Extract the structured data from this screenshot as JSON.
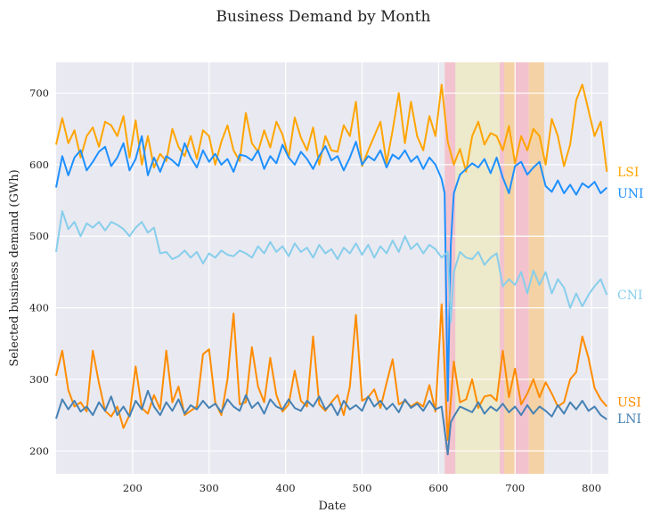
{
  "chart_data": {
    "type": "line",
    "title": "Business Demand by Month",
    "xlabel": "Date",
    "ylabel": "Selected business demand (GWh)",
    "xlim": [
      100,
      822
    ],
    "ylim": [
      168,
      743
    ],
    "xticks": [
      200,
      300,
      400,
      500,
      600,
      700,
      800
    ],
    "yticks": [
      200,
      300,
      400,
      500,
      600,
      700
    ],
    "grid": true,
    "background": "#e9e9f1",
    "bands": [
      {
        "start": 608,
        "end": 622,
        "color": "#f4b6c2"
      },
      {
        "start": 622,
        "end": 680,
        "color": "#eee8bd"
      },
      {
        "start": 680,
        "end": 686,
        "color": "#f4b6c2"
      },
      {
        "start": 686,
        "end": 700,
        "color": "#f7c98b"
      },
      {
        "start": 700,
        "end": 718,
        "color": "#f4b6c2"
      },
      {
        "start": 718,
        "end": 738,
        "color": "#f7c98b"
      }
    ],
    "series": [
      {
        "name": "LSI",
        "color": "#ffa500",
        "width": 2,
        "x": [
          100,
          108,
          116,
          124,
          132,
          140,
          148,
          156,
          164,
          172,
          180,
          188,
          196,
          204,
          212,
          220,
          228,
          236,
          244,
          252,
          260,
          268,
          276,
          284,
          292,
          300,
          308,
          316,
          324,
          332,
          340,
          348,
          356,
          364,
          372,
          380,
          388,
          396,
          404,
          412,
          420,
          428,
          436,
          444,
          452,
          460,
          468,
          476,
          484,
          492,
          500,
          508,
          516,
          524,
          532,
          540,
          548,
          556,
          564,
          572,
          580,
          588,
          596,
          604,
          612,
          620,
          628,
          636,
          644,
          652,
          660,
          668,
          676,
          684,
          692,
          700,
          708,
          716,
          724,
          732,
          740,
          748,
          756,
          764,
          772,
          780,
          788,
          796,
          804,
          812,
          820
        ],
        "y": [
          628,
          665,
          630,
          648,
          610,
          640,
          652,
          625,
          660,
          655,
          640,
          668,
          610,
          662,
          600,
          640,
          596,
          615,
          605,
          650,
          625,
          612,
          640,
          608,
          648,
          640,
          600,
          632,
          655,
          620,
          605,
          672,
          630,
          618,
          648,
          624,
          660,
          642,
          610,
          666,
          638,
          620,
          652,
          600,
          640,
          620,
          618,
          655,
          640,
          688,
          598,
          620,
          640,
          660,
          602,
          648,
          700,
          630,
          688,
          640,
          620,
          668,
          640,
          712,
          632,
          600,
          622,
          590,
          640,
          660,
          628,
          644,
          640,
          620,
          654,
          602,
          640,
          620,
          650,
          640,
          600,
          664,
          640,
          598,
          628,
          690,
          712,
          676,
          640,
          660,
          590
        ]
      },
      {
        "name": "UNI",
        "color": "#1e90ff",
        "width": 2,
        "x": [
          100,
          108,
          116,
          124,
          132,
          140,
          148,
          156,
          164,
          172,
          180,
          188,
          196,
          204,
          212,
          220,
          228,
          236,
          244,
          252,
          260,
          268,
          276,
          284,
          292,
          300,
          308,
          316,
          324,
          332,
          340,
          348,
          356,
          364,
          372,
          380,
          388,
          396,
          404,
          412,
          420,
          428,
          436,
          444,
          452,
          460,
          468,
          476,
          484,
          492,
          500,
          508,
          516,
          524,
          532,
          540,
          548,
          556,
          564,
          572,
          580,
          588,
          596,
          604,
          608,
          612,
          616,
          620,
          628,
          636,
          644,
          652,
          660,
          668,
          676,
          684,
          692,
          700,
          708,
          716,
          724,
          732,
          740,
          748,
          756,
          764,
          772,
          780,
          788,
          796,
          804,
          812,
          820
        ],
        "y": [
          568,
          612,
          585,
          610,
          620,
          592,
          604,
          618,
          625,
          598,
          610,
          630,
          592,
          608,
          640,
          585,
          610,
          590,
          612,
          606,
          598,
          630,
          610,
          596,
          620,
          604,
          615,
          600,
          608,
          590,
          614,
          612,
          606,
          620,
          594,
          612,
          602,
          628,
          610,
          600,
          618,
          608,
          594,
          612,
          626,
          606,
          612,
          592,
          610,
          632,
          600,
          612,
          606,
          620,
          596,
          614,
          608,
          620,
          604,
          612,
          594,
          610,
          600,
          580,
          560,
          270,
          488,
          560,
          586,
          594,
          602,
          596,
          608,
          588,
          610,
          582,
          560,
          598,
          604,
          586,
          596,
          604,
          570,
          562,
          578,
          560,
          572,
          558,
          574,
          568,
          576,
          560,
          568
        ]
      },
      {
        "name": "CNI",
        "color": "#87ceeb",
        "width": 2,
        "x": [
          100,
          108,
          116,
          124,
          132,
          140,
          148,
          156,
          164,
          172,
          180,
          188,
          196,
          204,
          212,
          220,
          228,
          236,
          244,
          252,
          260,
          268,
          276,
          284,
          292,
          300,
          308,
          316,
          324,
          332,
          340,
          348,
          356,
          364,
          372,
          380,
          388,
          396,
          404,
          412,
          420,
          428,
          436,
          444,
          452,
          460,
          468,
          476,
          484,
          492,
          500,
          508,
          516,
          524,
          532,
          540,
          548,
          556,
          564,
          572,
          580,
          588,
          596,
          604,
          612,
          616,
          620,
          628,
          636,
          644,
          652,
          660,
          668,
          676,
          684,
          692,
          700,
          708,
          716,
          724,
          732,
          740,
          748,
          756,
          764,
          772,
          780,
          788,
          796,
          804,
          812,
          820
        ],
        "y": [
          478,
          535,
          510,
          520,
          500,
          518,
          512,
          520,
          508,
          520,
          516,
          510,
          500,
          512,
          520,
          505,
          512,
          476,
          478,
          468,
          472,
          480,
          470,
          478,
          462,
          476,
          470,
          480,
          474,
          472,
          480,
          476,
          470,
          486,
          476,
          492,
          478,
          486,
          472,
          490,
          478,
          484,
          470,
          488,
          476,
          482,
          468,
          484,
          476,
          490,
          474,
          488,
          470,
          486,
          476,
          494,
          478,
          500,
          482,
          490,
          476,
          488,
          482,
          470,
          478,
          380,
          450,
          478,
          470,
          468,
          478,
          460,
          470,
          476,
          430,
          440,
          432,
          450,
          420,
          452,
          432,
          450,
          420,
          440,
          428,
          400,
          420,
          402,
          418,
          430,
          440,
          418
        ]
      },
      {
        "name": "USI",
        "color": "#ff8c00",
        "width": 2,
        "x": [
          100,
          108,
          116,
          124,
          132,
          140,
          148,
          156,
          164,
          172,
          180,
          188,
          196,
          204,
          212,
          220,
          228,
          236,
          244,
          252,
          260,
          268,
          276,
          284,
          292,
          300,
          308,
          316,
          324,
          332,
          340,
          348,
          356,
          364,
          372,
          380,
          388,
          396,
          404,
          412,
          420,
          428,
          436,
          444,
          452,
          460,
          468,
          476,
          484,
          492,
          500,
          508,
          516,
          524,
          532,
          540,
          548,
          556,
          564,
          572,
          580,
          588,
          596,
          604,
          612,
          620,
          628,
          636,
          644,
          652,
          660,
          668,
          676,
          684,
          692,
          700,
          708,
          716,
          724,
          732,
          740,
          748,
          756,
          764,
          772,
          780,
          788,
          796,
          804,
          812,
          820
        ],
        "y": [
          305,
          340,
          285,
          262,
          268,
          255,
          340,
          295,
          256,
          248,
          262,
          232,
          250,
          318,
          260,
          252,
          278,
          258,
          340,
          268,
          290,
          250,
          256,
          262,
          335,
          342,
          268,
          250,
          300,
          392,
          265,
          268,
          345,
          290,
          268,
          330,
          278,
          255,
          265,
          312,
          270,
          262,
          360,
          265,
          256,
          268,
          278,
          250,
          290,
          390,
          270,
          275,
          286,
          260,
          295,
          328,
          265,
          270,
          262,
          268,
          262,
          292,
          255,
          405,
          215,
          325,
          268,
          272,
          300,
          260,
          276,
          278,
          270,
          340,
          275,
          315,
          265,
          280,
          300,
          275,
          296,
          280,
          262,
          268,
          300,
          310,
          360,
          330,
          288,
          272,
          262
        ]
      },
      {
        "name": "LNI",
        "color": "#4682b4",
        "width": 2,
        "x": [
          100,
          108,
          116,
          124,
          132,
          140,
          148,
          156,
          164,
          172,
          180,
          188,
          196,
          204,
          212,
          220,
          228,
          236,
          244,
          252,
          260,
          268,
          276,
          284,
          292,
          300,
          308,
          316,
          324,
          332,
          340,
          348,
          356,
          364,
          372,
          380,
          388,
          396,
          404,
          412,
          420,
          428,
          436,
          444,
          452,
          460,
          468,
          476,
          484,
          492,
          500,
          508,
          516,
          524,
          532,
          540,
          548,
          556,
          564,
          572,
          580,
          588,
          596,
          604,
          612,
          616,
          620,
          628,
          636,
          644,
          652,
          660,
          668,
          676,
          684,
          692,
          700,
          708,
          716,
          724,
          732,
          740,
          748,
          756,
          764,
          772,
          780,
          788,
          796,
          804,
          812,
          820
        ],
        "y": [
          245,
          272,
          258,
          270,
          255,
          262,
          250,
          268,
          256,
          276,
          250,
          262,
          248,
          270,
          258,
          284,
          262,
          250,
          268,
          256,
          272,
          252,
          264,
          258,
          270,
          260,
          266,
          254,
          272,
          262,
          256,
          278,
          260,
          268,
          252,
          272,
          262,
          258,
          272,
          260,
          256,
          270,
          262,
          276,
          258,
          266,
          250,
          270,
          258,
          264,
          256,
          276,
          262,
          270,
          258,
          266,
          254,
          272,
          260,
          266,
          256,
          270,
          258,
          262,
          195,
          240,
          248,
          262,
          258,
          254,
          268,
          252,
          262,
          256,
          266,
          254,
          262,
          250,
          264,
          252,
          262,
          256,
          248,
          264,
          252,
          268,
          258,
          270,
          256,
          262,
          250,
          244
        ]
      }
    ],
    "end_labels": [
      {
        "series": "LSI",
        "text": "LSI",
        "y": 590
      },
      {
        "series": "UNI",
        "text": "UNI",
        "y": 560
      },
      {
        "series": "CNI",
        "text": "CNI",
        "y": 418
      },
      {
        "series": "USI",
        "text": "USI",
        "y": 268
      },
      {
        "series": "LNI",
        "text": "LNI",
        "y": 245
      }
    ]
  }
}
